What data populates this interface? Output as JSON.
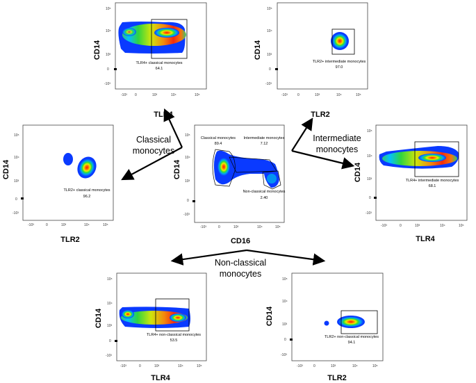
{
  "tick_labels": {
    "p5": "10⁵",
    "p4": "10⁴",
    "p3": "10³",
    "zero": "0",
    "m3": "-10³"
  },
  "flow_labels": {
    "classical": [
      "Classical",
      "monocytes"
    ],
    "intermediate": [
      "Intermediate",
      "monocytes"
    ],
    "nonclassical": [
      "Non-classical",
      "monocytes"
    ]
  },
  "panels": [
    {
      "id": "top-left",
      "xlabel": "TLR4",
      "ylabel": "CD14",
      "gate_label": "TLR4+ classical monocytes",
      "gate_value": "64.1"
    },
    {
      "id": "top-right",
      "xlabel": "TLR2",
      "ylabel": "CD14",
      "gate_label": "TLR2+ intermediate monocytes",
      "gate_value": "97.0"
    },
    {
      "id": "mid-left",
      "xlabel": "TLR2",
      "ylabel": "CD14",
      "gate_label": "TLR2+ classical monocytes",
      "gate_value": "96.2"
    },
    {
      "id": "center",
      "xlabel": "CD16",
      "ylabel": "CD14",
      "gates": [
        {
          "label": "Classical monocytes",
          "value": "89.4"
        },
        {
          "label": "Intermediate monocytes",
          "value": "7.12"
        },
        {
          "label": "Non-classical monocytes",
          "value": "2.40"
        }
      ]
    },
    {
      "id": "mid-right",
      "xlabel": "TLR4",
      "ylabel": "CD14",
      "gate_label": "TLR4+ intermediate monocytes",
      "gate_value": "68.1"
    },
    {
      "id": "bottom-left",
      "xlabel": "TLR4",
      "ylabel": "CD14",
      "gate_label": "TLR4+ non-classical monocytes",
      "gate_value": "53.5"
    },
    {
      "id": "bottom-right",
      "xlabel": "TLR2",
      "ylabel": "CD14",
      "gate_label": "TLR2+ non-classical monocytes",
      "gate_value": "94.1"
    }
  ]
}
